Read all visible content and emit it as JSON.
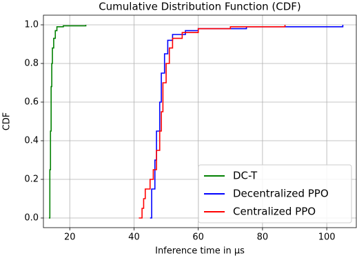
{
  "chart_data": {
    "type": "line",
    "drawstyle": "steps-post",
    "title": "Cumulative Distribution Function (CDF)",
    "x_label": "Inference time in μs",
    "y_label": "CDF",
    "xlim": [
      11.8,
      109.2
    ],
    "ylim": [
      -0.05,
      1.05
    ],
    "xticks": [
      20,
      40,
      60,
      80,
      100
    ],
    "yticks": [
      {
        "value": 0,
        "label": "0.0"
      },
      0.2,
      0.4,
      0.6,
      0.8,
      {
        "value": 1,
        "label": "1.0"
      }
    ],
    "grid": true,
    "legend": "lower right",
    "series": [
      {
        "name": "DC-T",
        "color": "#008000",
        "x": [
          13.5,
          13.8,
          14.0,
          14.2,
          14.4,
          14.6,
          15.0,
          15.5,
          16.0,
          18.0,
          25.0
        ],
        "values": [
          0,
          0.25,
          0.45,
          0.68,
          0.8,
          0.88,
          0.93,
          0.97,
          0.99,
          0.995,
          1.0
        ]
      },
      {
        "name": "Decentralized PPO",
        "color": "#0000ff",
        "x": [
          45.0,
          45.5,
          46.5,
          47.0,
          48.0,
          48.5,
          49.5,
          50.5,
          52.0,
          56.0,
          60.0,
          75.0,
          105.0
        ],
        "values": [
          0,
          0.15,
          0.3,
          0.45,
          0.6,
          0.75,
          0.85,
          0.92,
          0.95,
          0.97,
          0.98,
          0.99,
          1.0
        ]
      },
      {
        "name": "Centralized PPO",
        "color": "#ff0000",
        "x": [
          41.5,
          42.5,
          43.0,
          43.5,
          45.0,
          46.0,
          47.0,
          48.0,
          48.5,
          49.0,
          50.0,
          51.0,
          52.0,
          55.0,
          60.0,
          70.0,
          87.0
        ],
        "values": [
          0,
          0.05,
          0.1,
          0.15,
          0.2,
          0.25,
          0.35,
          0.45,
          0.55,
          0.7,
          0.8,
          0.88,
          0.93,
          0.96,
          0.98,
          0.99,
          1.0
        ]
      }
    ]
  }
}
